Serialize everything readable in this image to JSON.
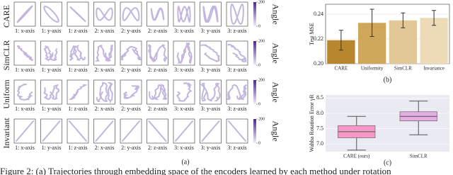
{
  "grid": {
    "rows": [
      "CARE",
      "SimCLR",
      "Uniform",
      "Invariant"
    ],
    "panels": [
      "1: x-axis",
      "1: y-axis",
      "1: z-axis",
      "2: x-axis",
      "2: y-axis",
      "2: z-axis",
      "3: x-axis",
      "3: y-axis",
      "3: z-axis"
    ],
    "colorbar": {
      "label": "Angle",
      "ticks": [
        0,
        200
      ]
    },
    "sublabel": "(a)"
  },
  "chart_data": [
    {
      "type": "bar",
      "ylabel": "Test MSE",
      "sublabel": "(b)",
      "categories": [
        "CARE",
        "Uniformity",
        "SimCLR",
        "Invariance"
      ],
      "values": [
        0.219,
        0.233,
        0.235,
        0.237
      ],
      "errors": [
        0.008,
        0.011,
        0.006,
        0.006
      ],
      "colors": [
        "#b8862e",
        "#cfa75a",
        "#e2c896",
        "#eddbb8"
      ],
      "ylim": [
        0.2,
        0.248
      ],
      "yticks": [
        {
          "value": 0.2,
          "label": "0.20"
        },
        0.22,
        0.24
      ],
      "grid": true
    },
    {
      "type": "box",
      "ylabel": "Wahba Rotation Error γR",
      "sublabel": "(c)",
      "categories": [
        "CARE (ours)",
        "SimCLR"
      ],
      "min": [
        6.8,
        7.3
      ],
      "q1": [
        7.2,
        7.75
      ],
      "median": [
        7.4,
        7.9
      ],
      "q3": [
        7.6,
        8.05
      ],
      "max": [
        7.9,
        8.4
      ],
      "colors": [
        "#f59ac8",
        "#e4aee3"
      ],
      "ylim": [
        6.75,
        8.6
      ],
      "yticks": [
        {
          "value": 7,
          "label": "7.0"
        },
        7.5,
        {
          "value": 8,
          "label": "8.0"
        },
        8.5
      ],
      "grid": true
    }
  ],
  "caption": "Figure 2: (a) Trajectories through embedding space of the encoders learned by each method under rotation"
}
